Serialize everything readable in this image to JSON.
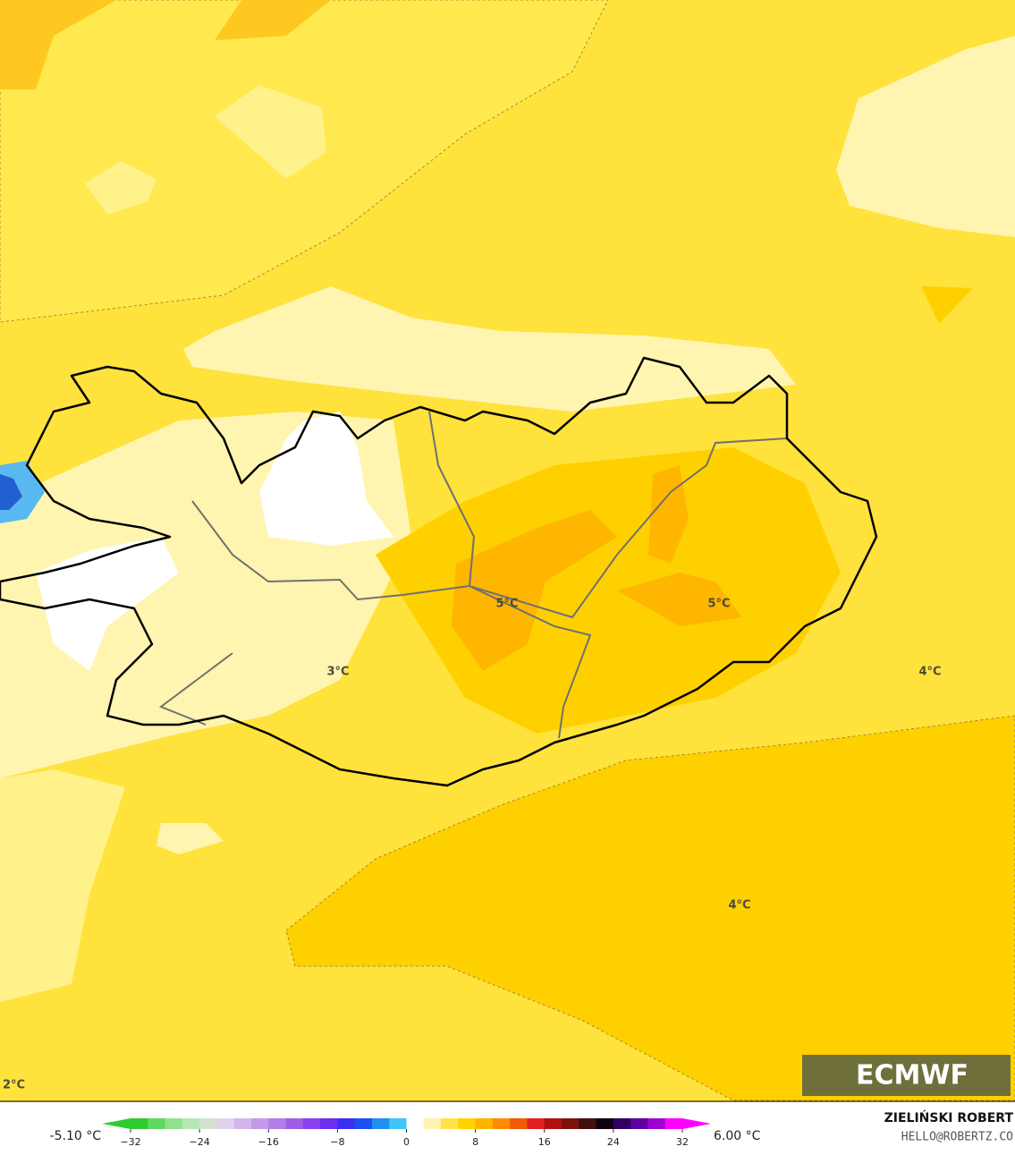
{
  "map": {
    "labels": [
      "5°C",
      "5°C",
      "3°C",
      "4°C",
      "4°C",
      "2°C"
    ],
    "logo": "ECMWF",
    "author": "ZIELIŃSKI ROBERT",
    "contact": "HELLO@ROBERTZ.CO"
  },
  "colorbar": {
    "min_label": "-5.10 °C",
    "max_label": "6.00 °C",
    "range": [
      -32,
      32
    ],
    "ticks": [
      {
        "value": -32,
        "label": "−32"
      },
      {
        "value": -24,
        "label": "−24"
      },
      {
        "value": -16,
        "label": "−16"
      },
      {
        "value": -8,
        "label": "−8"
      },
      0,
      8,
      16,
      24,
      32
    ],
    "colors": [
      "#2ecc2e",
      "#5fd85f",
      "#8fe08f",
      "#b6e6b6",
      "#d2e2d2",
      "#e2d2ec",
      "#d4b6ec",
      "#c49ae8",
      "#b07ee6",
      "#9c5fe6",
      "#8a3ff0",
      "#6b2ff0",
      "#3a2ff0",
      "#1f4ff0",
      "#1f8ff0",
      "#3fc6f6",
      "#ffffff",
      "#fff3b0",
      "#ffe34a",
      "#ffd200",
      "#ffb400",
      "#ff8c00",
      "#f05a00",
      "#e02020",
      "#b01010",
      "#801010",
      "#401010",
      "#100010",
      "#300060",
      "#6000a0",
      "#a000d0",
      "#ff00ff"
    ]
  }
}
